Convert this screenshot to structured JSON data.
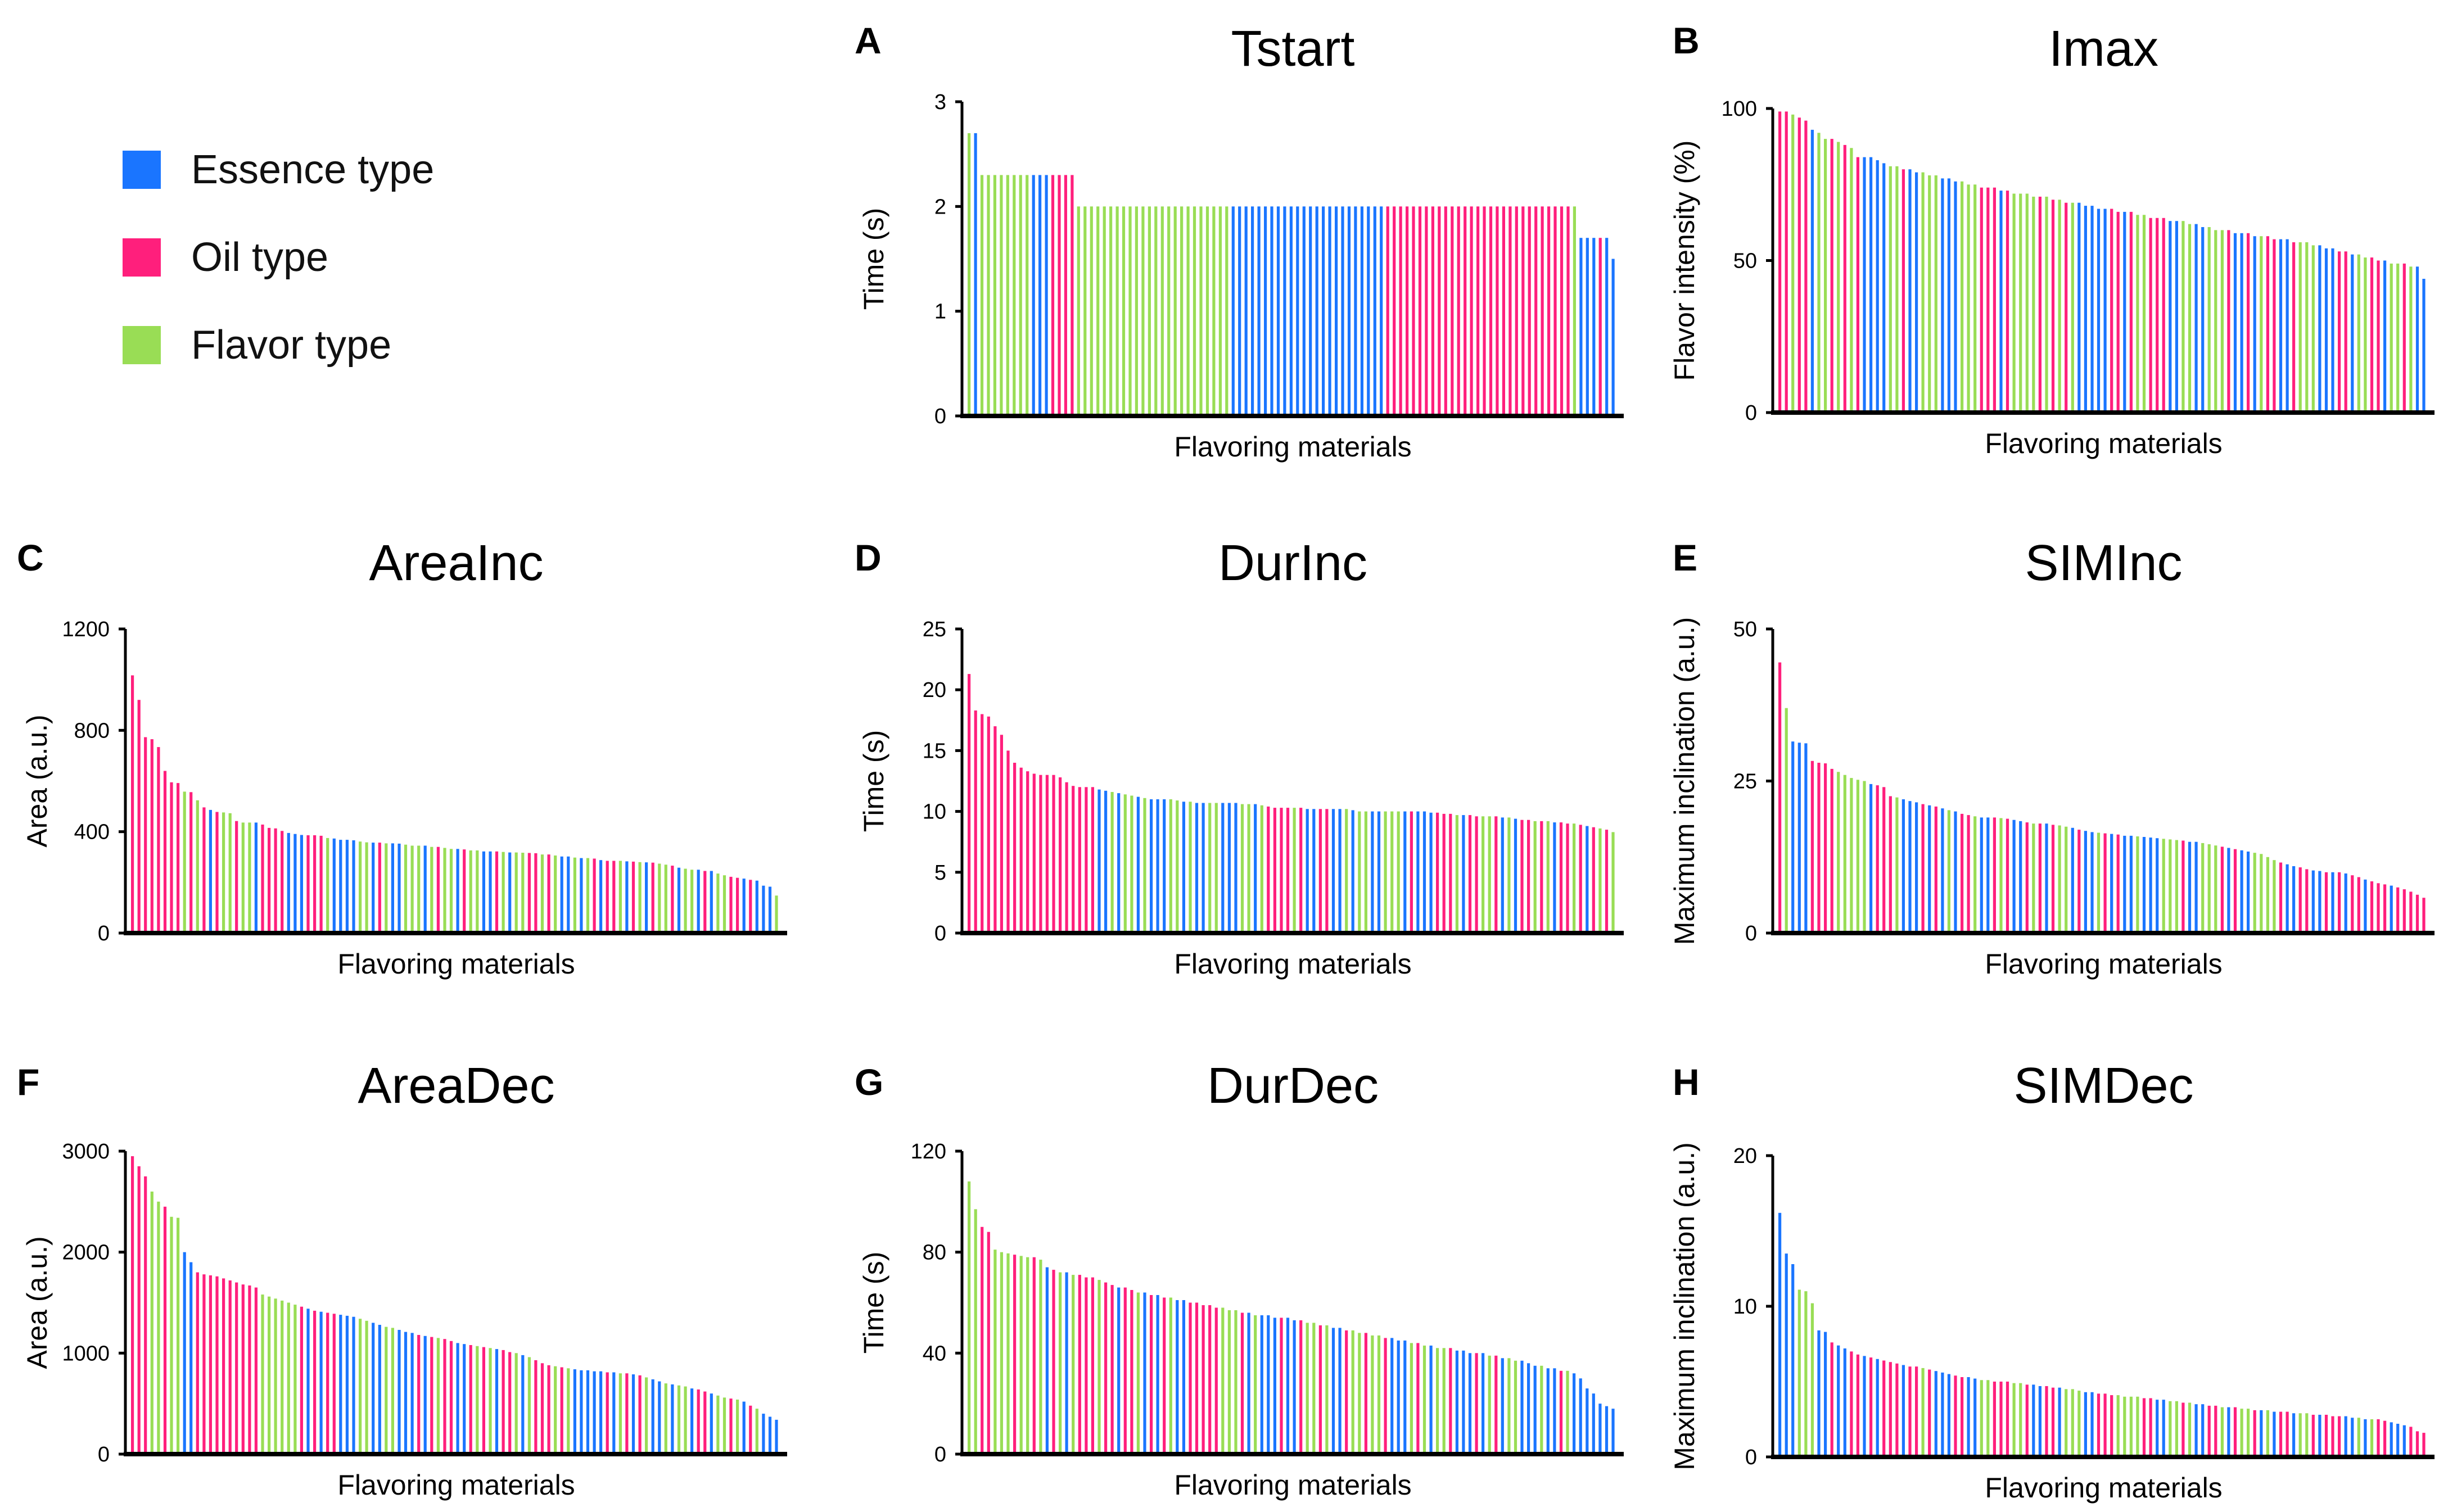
{
  "legend": [
    {
      "label": "Essence type",
      "color": "#1a75ff"
    },
    {
      "label": "Oil type",
      "color": "#ff1f7c"
    },
    {
      "label": "Flavor type",
      "color": "#99dd55"
    }
  ],
  "color_codes": {
    "B": "#1a75ff",
    "P": "#ff1f7c",
    "G": "#99dd55"
  },
  "chart_data": [
    {
      "type": "bar",
      "panel": "A",
      "title": "Tstart",
      "xlabel": "Flavoring materials",
      "ylabel": "Time (s)",
      "ylim": [
        0,
        3
      ],
      "yticks": [
        0,
        1,
        2,
        3
      ],
      "colors": "GBGGGGGGGGBBBPPPPGGGGGGGGGGGGGGGGGGGGGGGGBBBBBBBBBBBBBBBBBBBBBBBBPPPPPPPPPPPPPPPPPPPPPPPPPPPPPGBBBPB",
      "values": [
        2.7,
        2.7,
        2.3,
        2.3,
        2.3,
        2.3,
        2.3,
        2.3,
        2.3,
        2.3,
        2.3,
        2.3,
        2.3,
        2.3,
        2.3,
        2.3,
        2.3,
        2,
        2,
        2,
        2,
        2,
        2,
        2,
        2,
        2,
        2,
        2,
        2,
        2,
        2,
        2,
        2,
        2,
        2,
        2,
        2,
        2,
        2,
        2,
        2,
        2,
        2,
        2,
        2,
        2,
        2,
        2,
        2,
        2,
        2,
        2,
        2,
        2,
        2,
        2,
        2,
        2,
        2,
        2,
        2,
        2,
        2,
        2,
        2,
        2,
        2,
        2,
        2,
        2,
        2,
        2,
        2,
        2,
        2,
        2,
        2,
        2,
        2,
        2,
        2,
        2,
        2,
        2,
        2,
        2,
        2,
        2,
        2,
        2,
        2,
        2,
        2,
        2,
        2,
        1.7,
        1.7,
        1.7,
        1.7,
        1.7,
        1.5
      ]
    },
    {
      "type": "bar",
      "panel": "B",
      "title": "Imax",
      "xlabel": "Flavoring materials",
      "ylabel": "Flavor intensity (%)",
      "ylim": [
        0,
        100
      ],
      "yticks": [
        0,
        50,
        100
      ],
      "colors": "PPGPPBGGPGPGPBBBBGGPBBGGGBBBGGGPPPBPGGGGPGPGPGBBBBBPPBPGGPPPBBGGBBGGGPBBPBGPPBBPGGGBBBPPBGGPPBGGPGBB",
      "values": [
        99,
        99,
        98,
        97,
        96,
        93,
        92,
        90,
        90,
        89,
        88,
        87,
        84,
        84,
        84,
        83,
        82,
        81,
        81,
        80,
        80,
        79,
        79,
        78,
        78,
        77,
        77,
        76,
        76,
        75,
        75,
        74,
        74,
        74,
        73,
        73,
        72,
        72,
        72,
        71,
        71,
        71,
        70,
        70,
        69,
        69,
        69,
        68,
        68,
        67,
        67,
        67,
        66,
        66,
        66,
        65,
        65,
        64,
        64,
        64,
        63,
        63,
        63,
        62,
        62,
        61,
        61,
        60,
        60,
        60,
        59,
        59,
        59,
        58,
        58,
        58,
        57,
        57,
        57,
        56,
        56,
        56,
        55,
        55,
        54,
        54,
        53,
        53,
        52,
        52,
        51,
        51,
        50,
        50,
        49,
        49,
        49,
        48,
        48,
        44
      ]
    },
    {
      "type": "bar",
      "panel": "C",
      "title": "AreaInc",
      "xlabel": "Flavoring materials",
      "ylabel": "Area (a.u.)",
      "ylim": [
        0,
        1200
      ],
      "yticks": [
        0,
        400,
        800,
        1200
      ],
      "colors": "PPPPPPPPGPGPBPGGPGGBPPPPBBBPPPGBBBBGGBPGBBGGGBGPGGBPGGBBPGBGGPPGPGBBGBGPBPPGBPGBPGGPBGGBPBGGPPBPBBBG",
      "values": [
        1017,
        920,
        773,
        765,
        734,
        640,
        595,
        592,
        558,
        556,
        524,
        496,
        486,
        478,
        476,
        473,
        442,
        436,
        436,
        436,
        428,
        415,
        413,
        403,
        395,
        391,
        387,
        386,
        386,
        384,
        375,
        373,
        368,
        368,
        366,
        361,
        358,
        357,
        357,
        354,
        354,
        353,
        349,
        345,
        345,
        345,
        340,
        340,
        336,
        332,
        332,
        330,
        326,
        326,
        322,
        322,
        322,
        320,
        318,
        318,
        317,
        316,
        315,
        310,
        310,
        306,
        302,
        302,
        298,
        296,
        296,
        294,
        288,
        285,
        285,
        285,
        283,
        282,
        280,
        279,
        278,
        274,
        270,
        266,
        258,
        254,
        250,
        250,
        245,
        245,
        235,
        228,
        222,
        218,
        215,
        210,
        207,
        187,
        183,
        148
      ]
    },
    {
      "type": "bar",
      "panel": "D",
      "title": "DurInc",
      "xlabel": "Flavoring materials",
      "ylabel": "Time (s)",
      "ylim": [
        0,
        25
      ],
      "yticks": [
        0,
        5,
        10,
        15,
        20,
        25
      ],
      "colors": "PPPPPPPPPPPPPPPPPPPPBBGBGGBGBBBGGBGBBGGBBBGGBGPPPPGPBBPPBBGBGGBBGGGBPBBBPPPGBPPGGPBGBPPGPGBPPGPBPGPG",
      "values": [
        21.3,
        18.3,
        18.0,
        17.8,
        17.0,
        16.3,
        15.0,
        14.0,
        13.6,
        13.3,
        13.1,
        13.0,
        13.0,
        13.0,
        12.8,
        12.4,
        12.1,
        12.0,
        12.0,
        12.0,
        11.8,
        11.7,
        11.6,
        11.5,
        11.4,
        11.3,
        11.2,
        11.1,
        11.0,
        11.0,
        11.0,
        11.0,
        10.9,
        10.8,
        10.8,
        10.7,
        10.7,
        10.7,
        10.7,
        10.7,
        10.7,
        10.7,
        10.6,
        10.6,
        10.6,
        10.5,
        10.4,
        10.3,
        10.3,
        10.3,
        10.3,
        10.3,
        10.2,
        10.2,
        10.2,
        10.2,
        10.2,
        10.2,
        10.2,
        10.1,
        10.0,
        10.0,
        10.0,
        10.0,
        10.0,
        10.0,
        10.0,
        10.0,
        10.0,
        10.0,
        10.0,
        9.9,
        9.9,
        9.8,
        9.8,
        9.7,
        9.7,
        9.7,
        9.6,
        9.6,
        9.6,
        9.6,
        9.5,
        9.5,
        9.4,
        9.3,
        9.3,
        9.2,
        9.2,
        9.2,
        9.1,
        9.1,
        9.0,
        9.0,
        8.9,
        8.8,
        8.7,
        8.6,
        8.5,
        8.3
      ]
    },
    {
      "type": "bar",
      "panel": "E",
      "title": "SIMInc",
      "xlabel": "Flavoring materials",
      "ylabel": "Maximum inclination (a.u.)",
      "ylim": [
        0,
        50
      ],
      "yticks": [
        0,
        25,
        50
      ],
      "colors": "PGBBBPPPPGGGGGBPPPGBBBPBPBGBPPGBBPGPBBPGPBPGGBPBBGPBPBBGBBBGGGPBBGGGPBPBBGGGGPBBPPBBPBPBPPBPPPBPPPPP",
      "values": [
        44.5,
        37,
        31.5,
        31.3,
        31.2,
        28.3,
        28,
        27.9,
        27,
        26.5,
        26,
        25.5,
        25.2,
        25,
        24.5,
        24.3,
        24,
        22.5,
        22.3,
        22,
        21.7,
        21.5,
        21.2,
        21,
        20.8,
        20.5,
        20.2,
        20,
        19.6,
        19.4,
        19.2,
        19,
        19,
        19,
        18.9,
        18.8,
        18.6,
        18.4,
        18.2,
        18,
        18,
        18,
        17.8,
        17.7,
        17.5,
        17.3,
        17,
        16.8,
        16.6,
        16.5,
        16.4,
        16.3,
        16.2,
        16,
        16,
        15.9,
        15.8,
        15.7,
        15.6,
        15.5,
        15.4,
        15.3,
        15.2,
        15,
        15,
        14.8,
        14.6,
        14.4,
        14.2,
        14,
        13.8,
        13.6,
        13.4,
        13.2,
        13,
        12.5,
        12,
        11.6,
        11.3,
        11,
        10.8,
        10.5,
        10.3,
        10.2,
        10,
        10,
        10,
        9.8,
        9.5,
        9.2,
        8.8,
        8.5,
        8.2,
        8,
        7.8,
        7.5,
        7.2,
        6.8,
        6.3,
        5.8
      ]
    },
    {
      "type": "bar",
      "panel": "F",
      "title": "AreaDec",
      "xlabel": "Flavoring materials",
      "ylabel": "Area (a.u.)",
      "ylim": [
        0,
        3000
      ],
      "yticks": [
        0,
        1000,
        2000,
        3000
      ],
      "colors": "PPPGGPGGBBPPPPPPPPPPGGGGGGPBPBPPBBBGGBBGGBBBPBPGPPBBPGPGBPPGBGPPPGPGBBBBBPBGPBPGBBGBGGBPPBGGPGBPGBBB",
      "values": [
        2950,
        2850,
        2750,
        2600,
        2500,
        2450,
        2350,
        2340,
        2000,
        1900,
        1800,
        1780,
        1770,
        1760,
        1740,
        1720,
        1700,
        1680,
        1670,
        1650,
        1580,
        1560,
        1540,
        1520,
        1500,
        1480,
        1460,
        1440,
        1420,
        1410,
        1400,
        1390,
        1380,
        1370,
        1360,
        1340,
        1320,
        1300,
        1280,
        1260,
        1250,
        1230,
        1210,
        1200,
        1180,
        1170,
        1160,
        1150,
        1140,
        1120,
        1100,
        1090,
        1080,
        1070,
        1060,
        1050,
        1040,
        1030,
        1010,
        1000,
        980,
        960,
        930,
        900,
        880,
        870,
        860,
        850,
        840,
        830,
        830,
        820,
        820,
        810,
        810,
        800,
        800,
        790,
        780,
        760,
        740,
        720,
        700,
        690,
        680,
        670,
        650,
        640,
        620,
        600,
        580,
        560,
        550,
        540,
        520,
        480,
        450,
        400,
        370,
        340
      ]
    },
    {
      "type": "bar",
      "panel": "G",
      "title": "DurDec",
      "xlabel": "Flavoring materials",
      "ylabel": "Time (s)",
      "ylim": [
        0,
        120
      ],
      "yticks": [
        0,
        40,
        80,
        120
      ],
      "colors": "GGPPGGGPGGPGBPGBGPPPGPPBPPGBPBPGBBPPPPPGGGPBGBBBPBBPGGPGBBPGGPGGPBBBGPGBGGPBBBPBGPBGGBBBGBBPGBBBBBBB",
      "values": [
        108,
        97,
        90,
        88,
        81,
        80,
        79.5,
        79,
        78.5,
        78,
        78,
        77,
        74,
        73,
        72,
        72,
        71,
        71,
        70,
        70,
        69,
        68,
        67,
        66,
        66,
        65,
        64,
        64,
        63,
        63,
        62,
        62,
        61,
        61,
        60,
        60,
        59,
        59,
        58,
        58,
        57,
        57,
        56,
        56,
        55,
        55,
        55,
        54,
        54,
        54,
        53,
        53,
        52,
        52,
        51,
        51,
        50,
        50,
        49,
        49,
        48,
        48,
        47,
        47,
        46,
        46,
        45,
        45,
        44,
        44,
        43,
        43,
        42,
        42,
        42,
        41,
        41,
        40,
        40,
        40,
        39,
        39,
        38,
        38,
        37,
        37,
        36,
        35,
        35,
        34,
        34,
        33,
        33,
        32,
        30,
        26,
        24,
        20,
        19,
        18
      ]
    },
    {
      "type": "bar",
      "panel": "H",
      "title": "SIMDec",
      "xlabel": "Flavoring materials",
      "ylabel": "Maximum inclination (a.u.)",
      "ylim": [
        0,
        20
      ],
      "yticks": [
        0,
        10,
        20
      ],
      "colors": "BBBGGGBBPBBPPBPBPPPBPPGPBBBPPBBGGPPPGGPBBPPBGGGBBPPPGGGGPPBBGGPGBBPPGBPGGPBGBPPBGGPBPPPBBGBGPPBBBPPP",
      "values": [
        16.2,
        13.5,
        12.8,
        11.1,
        11,
        10.2,
        8.4,
        8.3,
        7.6,
        7.4,
        7.2,
        7,
        6.8,
        6.7,
        6.6,
        6.5,
        6.4,
        6.3,
        6.2,
        6.1,
        6,
        6,
        5.9,
        5.8,
        5.7,
        5.6,
        5.5,
        5.4,
        5.3,
        5.3,
        5.2,
        5.1,
        5.1,
        5,
        5,
        5,
        4.9,
        4.9,
        4.8,
        4.8,
        4.7,
        4.7,
        4.6,
        4.6,
        4.5,
        4.5,
        4.4,
        4.3,
        4.3,
        4.2,
        4.2,
        4.1,
        4.1,
        4,
        4,
        4,
        3.9,
        3.9,
        3.8,
        3.8,
        3.7,
        3.7,
        3.6,
        3.6,
        3.5,
        3.5,
        3.4,
        3.4,
        3.3,
        3.3,
        3.3,
        3.2,
        3.2,
        3.1,
        3.1,
        3.1,
        3,
        3,
        3,
        2.9,
        2.9,
        2.9,
        2.8,
        2.8,
        2.8,
        2.7,
        2.7,
        2.7,
        2.6,
        2.6,
        2.5,
        2.5,
        2.5,
        2.4,
        2.3,
        2.2,
        2.1,
        2,
        1.7,
        1.6
      ]
    }
  ]
}
